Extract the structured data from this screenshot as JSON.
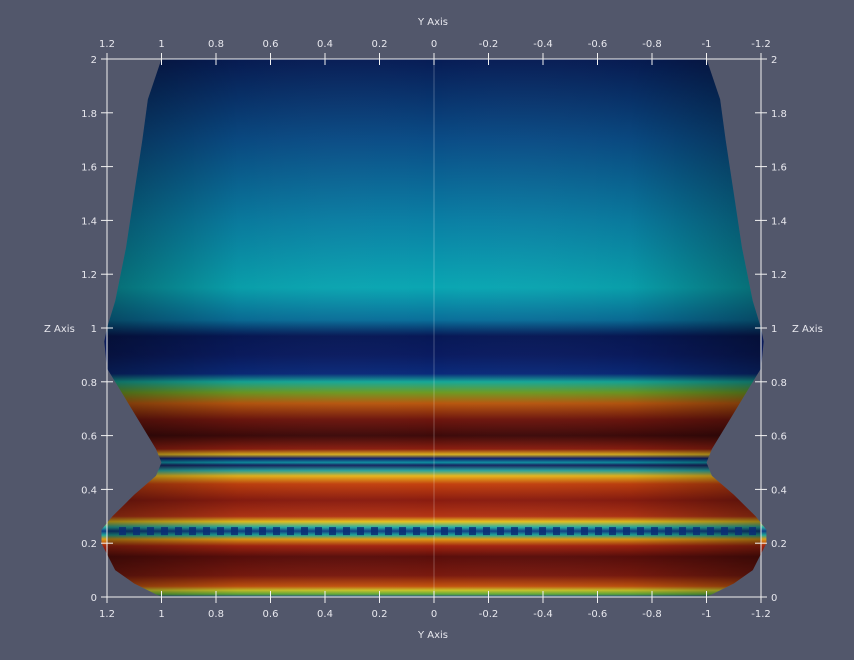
{
  "scene": {
    "background": "#52576b",
    "axis_color": "#f2f2f2",
    "label_color": "#e8e8ee"
  },
  "axes": {
    "top_title": "Y Axis",
    "bottom_title": "Y Axis",
    "left_title": "Z Axis",
    "right_title": "Z Axis",
    "y_ticks": [
      "1.2",
      "1",
      "0.8",
      "0.6",
      "0.4",
      "0.2",
      "0",
      "-0.2",
      "-0.4",
      "-0.6",
      "-0.8",
      "-1",
      "-1.2"
    ],
    "y_tick_values": [
      1.2,
      1,
      0.8,
      0.6,
      0.4,
      0.2,
      0,
      -0.2,
      -0.4,
      -0.6,
      -0.8,
      -1,
      -1.2
    ],
    "z_ticks": [
      "0",
      "0.2",
      "0.4",
      "0.6",
      "0.8",
      "1",
      "1.2",
      "1.4",
      "1.6",
      "1.8",
      "2"
    ],
    "z_tick_values": [
      0,
      0.2,
      0.4,
      0.6,
      0.8,
      1,
      1.2,
      1.4,
      1.6,
      1.8,
      2
    ],
    "y_range": [
      1.2,
      -1.2
    ],
    "z_range": [
      0,
      2
    ]
  },
  "surface": {
    "profile_radius_by_z": [
      [
        0.0,
        1.0
      ],
      [
        0.05,
        1.1
      ],
      [
        0.1,
        1.17
      ],
      [
        0.2,
        1.22
      ],
      [
        0.25,
        1.22
      ],
      [
        0.3,
        1.18
      ],
      [
        0.38,
        1.1
      ],
      [
        0.45,
        1.02
      ],
      [
        0.5,
        1.0
      ],
      [
        0.55,
        1.02
      ],
      [
        0.65,
        1.08
      ],
      [
        0.75,
        1.14
      ],
      [
        0.85,
        1.2
      ],
      [
        0.95,
        1.21
      ],
      [
        1.0,
        1.2
      ],
      [
        1.1,
        1.17
      ],
      [
        1.3,
        1.13
      ],
      [
        1.5,
        1.1
      ],
      [
        1.7,
        1.07
      ],
      [
        1.85,
        1.05
      ],
      [
        2.0,
        1.0
      ]
    ],
    "color_bands": [
      {
        "z": 0.0,
        "color": "#1a3c9a"
      },
      {
        "z": 0.01,
        "color": "#5da83a"
      },
      {
        "z": 0.025,
        "color": "#c8c32a"
      },
      {
        "z": 0.04,
        "color": "#c2530f"
      },
      {
        "z": 0.08,
        "color": "#7a1a0f"
      },
      {
        "z": 0.15,
        "color": "#5a0e0b"
      },
      {
        "z": 0.19,
        "color": "#a32410"
      },
      {
        "z": 0.215,
        "color": "#e09b15"
      },
      {
        "z": 0.23,
        "color": "#1fa79a"
      },
      {
        "z": 0.245,
        "color": "#0f3e86"
      },
      {
        "z": 0.26,
        "color": "#2ab0a5"
      },
      {
        "z": 0.28,
        "color": "#e7c21e"
      },
      {
        "z": 0.3,
        "color": "#b33515"
      },
      {
        "z": 0.36,
        "color": "#8a1c10"
      },
      {
        "z": 0.42,
        "color": "#c3410f"
      },
      {
        "z": 0.45,
        "color": "#e8b61c"
      },
      {
        "z": 0.47,
        "color": "#2aa5a0"
      },
      {
        "z": 0.49,
        "color": "#15235f"
      },
      {
        "z": 0.5,
        "color": "#0f8ea0"
      },
      {
        "z": 0.515,
        "color": "#0e1d6b"
      },
      {
        "z": 0.53,
        "color": "#d9b020"
      },
      {
        "z": 0.55,
        "color": "#8a1e10"
      },
      {
        "z": 0.6,
        "color": "#3d0a0a"
      },
      {
        "z": 0.66,
        "color": "#6e160e"
      },
      {
        "z": 0.72,
        "color": "#b8570f"
      },
      {
        "z": 0.76,
        "color": "#6e9a22"
      },
      {
        "z": 0.8,
        "color": "#16a897"
      },
      {
        "z": 0.83,
        "color": "#0a2a7a"
      },
      {
        "z": 0.9,
        "color": "#0a1b60"
      },
      {
        "z": 0.97,
        "color": "#071856"
      },
      {
        "z": 1.03,
        "color": "#0a6f9a"
      },
      {
        "z": 1.15,
        "color": "#0aa6b2"
      },
      {
        "z": 1.4,
        "color": "#0a7fa4"
      },
      {
        "z": 1.7,
        "color": "#0a4c86"
      },
      {
        "z": 2.0,
        "color": "#071c55"
      }
    ]
  }
}
